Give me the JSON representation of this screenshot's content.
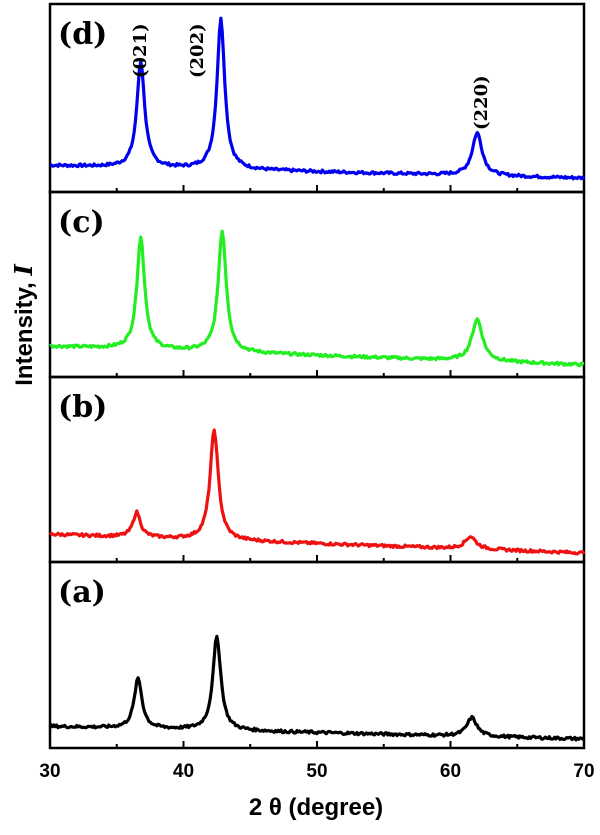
{
  "chart_data": {
    "type": "line",
    "title": "",
    "xlabel": "2 θ (degree)",
    "ylabel_main": "Intensity, ",
    "ylabel_italic": "I",
    "xlim": [
      30,
      70
    ],
    "xticks": [
      "30",
      "40",
      "50",
      "60",
      "70"
    ],
    "xtick_values": [
      30,
      40,
      50,
      60,
      70
    ],
    "grid": false,
    "panels": [
      {
        "label": "(d)",
        "color": "#0000ee",
        "baseline": 0.13,
        "slope": 0.08,
        "peaks": [
          {
            "x": 36.8,
            "h": 0.67,
            "w": 0.35
          },
          {
            "x": 42.8,
            "h": 0.95,
            "w": 0.35
          },
          {
            "x": 62.0,
            "h": 0.27,
            "w": 0.45
          }
        ]
      },
      {
        "label": "(c)",
        "color": "#22ee22",
        "baseline": 0.16,
        "slope": 0.12,
        "peaks": [
          {
            "x": 36.8,
            "h": 0.72,
            "w": 0.35
          },
          {
            "x": 42.9,
            "h": 0.78,
            "w": 0.36
          },
          {
            "x": 62.0,
            "h": 0.27,
            "w": 0.48
          }
        ]
      },
      {
        "label": "(b)",
        "color": "#ee1111",
        "baseline": 0.14,
        "slope": 0.12,
        "peaks": [
          {
            "x": 36.5,
            "h": 0.16,
            "w": 0.34
          },
          {
            "x": 42.3,
            "h": 0.71,
            "w": 0.37
          },
          {
            "x": 61.5,
            "h": 0.08,
            "w": 0.5
          }
        ]
      },
      {
        "label": "(a)",
        "color": "#000000",
        "baseline": 0.1,
        "slope": 0.08,
        "peaks": [
          {
            "x": 36.6,
            "h": 0.32,
            "w": 0.35
          },
          {
            "x": 42.5,
            "h": 0.6,
            "w": 0.36
          },
          {
            "x": 61.6,
            "h": 0.12,
            "w": 0.45
          }
        ]
      }
    ],
    "peak_annotations": [
      {
        "text": "(021)",
        "x": 36.8
      },
      {
        "text": "(202)",
        "x": 42.8
      },
      {
        "text": "(220)",
        "x": 62.0
      }
    ]
  }
}
